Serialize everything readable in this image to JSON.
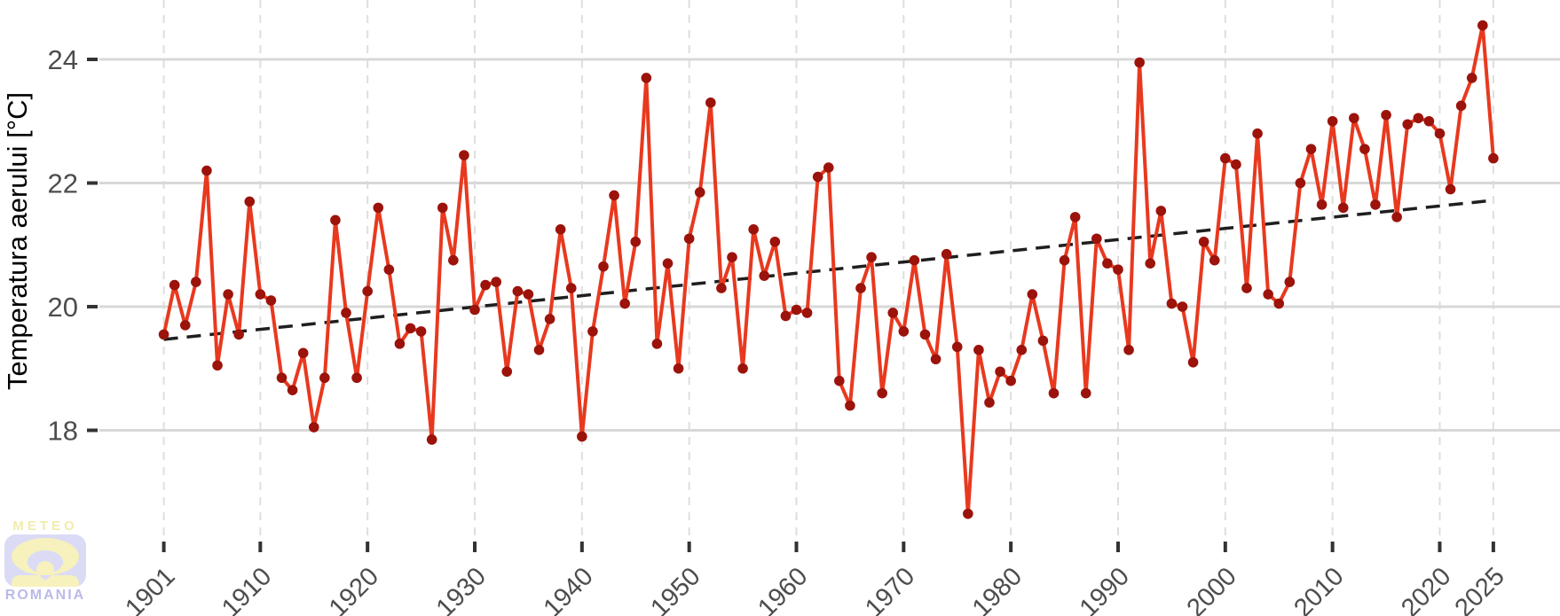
{
  "chart_data": {
    "type": "line",
    "title": "",
    "xlabel": "",
    "ylabel": "Temperatura aerului [°C]",
    "start_year": 1901,
    "end_year": 2025,
    "x_ticks": [
      1901,
      1910,
      1920,
      1930,
      1940,
      1950,
      1960,
      1970,
      1980,
      1990,
      2000,
      2010,
      2020,
      2025
    ],
    "y_ticks": [
      18,
      20,
      22,
      24
    ],
    "ylim": [
      16.2,
      24.95
    ],
    "grid": true,
    "legend_position": "none",
    "values": [
      19.55,
      20.35,
      19.7,
      20.4,
      22.2,
      19.05,
      20.2,
      19.55,
      21.7,
      20.2,
      20.1,
      18.85,
      18.65,
      19.25,
      18.05,
      18.85,
      21.4,
      19.9,
      18.85,
      20.25,
      21.6,
      20.6,
      19.4,
      19.65,
      19.6,
      17.85,
      21.6,
      20.75,
      22.45,
      19.95,
      20.35,
      20.4,
      18.95,
      20.25,
      20.2,
      19.3,
      19.8,
      21.25,
      20.3,
      17.9,
      19.6,
      20.65,
      21.8,
      20.05,
      21.05,
      23.7,
      19.4,
      20.7,
      19.0,
      21.1,
      21.85,
      23.3,
      20.3,
      20.8,
      19.0,
      21.25,
      20.5,
      21.05,
      19.85,
      19.95,
      19.9,
      22.1,
      22.25,
      18.8,
      18.4,
      20.3,
      20.8,
      18.6,
      19.9,
      19.6,
      20.75,
      19.55,
      19.15,
      20.85,
      19.35,
      16.65,
      19.3,
      18.45,
      18.95,
      18.8,
      19.3,
      20.2,
      19.45,
      18.6,
      20.75,
      21.45,
      18.6,
      21.1,
      20.7,
      20.6,
      19.3,
      23.95,
      20.7,
      21.55,
      20.05,
      20.0,
      19.1,
      21.05,
      20.75,
      22.4,
      22.3,
      20.3,
      22.8,
      20.2,
      20.05,
      20.4,
      22.0,
      22.55,
      21.65,
      23.0,
      21.6,
      23.05,
      22.55,
      21.65,
      23.1,
      21.45,
      22.95,
      23.05,
      23.0,
      22.8,
      21.9,
      23.25,
      23.7,
      24.55,
      22.4
    ],
    "trend": {
      "x1": 1901,
      "y1": 19.47,
      "x2": 2025,
      "y2": 21.72,
      "style": "dashed"
    }
  },
  "colors": {
    "background": "#ffffff",
    "line": "#e8391f",
    "point": "#9b130b",
    "trend": "#1f1f1f",
    "grid_horizontal": "#d8d8d8",
    "grid_vertical": "#dedede",
    "tick": "#333333",
    "tick_label": "#4d4d4d",
    "axis_title": "#000000"
  },
  "logo": {
    "meteo": "METEO",
    "romania": "ROMANIA"
  }
}
